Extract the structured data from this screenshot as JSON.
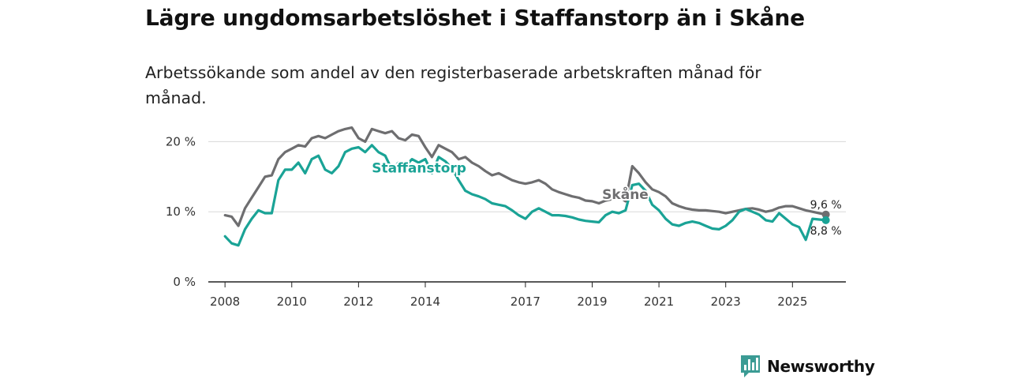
{
  "title": "Lägre ungdomsarbetslöshet i Staffanstorp än i Skåne",
  "subtitle": "Arbetssökande som andel av den registerbaserade arbetskraften månad för månad.",
  "brand": {
    "name": "Newsworthy",
    "icon": "newsworthy-logo-icon",
    "color": "#3b9b94"
  },
  "chart_data": {
    "type": "line",
    "xlim": [
      2007.5,
      2026.6
    ],
    "ylim": [
      0,
      25
    ],
    "y_ticks": [
      0,
      10,
      20
    ],
    "y_tick_labels": [
      "0 %",
      "10 %",
      "20 %"
    ],
    "x_ticks": [
      2008,
      2010,
      2012,
      2014,
      2017,
      2019,
      2021,
      2023,
      2025
    ],
    "x_tick_labels": [
      "2008",
      "2010",
      "2012",
      "2014",
      "2017",
      "2019",
      "2021",
      "2023",
      "2025"
    ],
    "gridlines": true,
    "series": [
      {
        "name": "Skåne",
        "color": "#6e6e70",
        "end_label": "9,6 %",
        "x": [
          2008.0,
          2008.2,
          2008.4,
          2008.6,
          2008.8,
          2009.0,
          2009.2,
          2009.4,
          2009.6,
          2009.8,
          2010.0,
          2010.2,
          2010.4,
          2010.6,
          2010.8,
          2011.0,
          2011.2,
          2011.4,
          2011.6,
          2011.8,
          2012.0,
          2012.2,
          2012.4,
          2012.6,
          2012.8,
          2013.0,
          2013.2,
          2013.4,
          2013.6,
          2013.8,
          2014.0,
          2014.2,
          2014.4,
          2014.6,
          2014.8,
          2015.0,
          2015.2,
          2015.4,
          2015.6,
          2015.8,
          2016.0,
          2016.2,
          2016.4,
          2016.6,
          2016.8,
          2017.0,
          2017.2,
          2017.4,
          2017.6,
          2017.8,
          2018.0,
          2018.2,
          2018.4,
          2018.6,
          2018.8,
          2019.0,
          2019.2,
          2019.4,
          2019.6,
          2019.8,
          2020.0,
          2020.2,
          2020.4,
          2020.6,
          2020.8,
          2021.0,
          2021.2,
          2021.4,
          2021.6,
          2021.8,
          2022.0,
          2022.2,
          2022.4,
          2022.6,
          2022.8,
          2023.0,
          2023.2,
          2023.4,
          2023.6,
          2023.8,
          2024.0,
          2024.2,
          2024.4,
          2024.6,
          2024.8,
          2025.0,
          2025.2,
          2025.4,
          2025.6,
          2025.8,
          2026.0
        ],
        "values": [
          9.5,
          9.3,
          8.0,
          10.5,
          12.0,
          13.5,
          15.0,
          15.2,
          17.5,
          18.5,
          19.0,
          19.5,
          19.3,
          20.5,
          20.8,
          20.5,
          21.0,
          21.5,
          21.8,
          22.0,
          20.5,
          20.0,
          21.8,
          21.5,
          21.2,
          21.5,
          20.5,
          20.2,
          21.0,
          20.8,
          19.2,
          17.8,
          19.5,
          19.0,
          18.5,
          17.5,
          17.8,
          17.0,
          16.5,
          15.8,
          15.2,
          15.5,
          15.0,
          14.5,
          14.2,
          14.0,
          14.2,
          14.5,
          14.0,
          13.2,
          12.8,
          12.5,
          12.2,
          12.0,
          11.6,
          11.5,
          11.2,
          11.6,
          11.8,
          12.2,
          11.5,
          16.5,
          15.5,
          14.2,
          13.2,
          12.8,
          12.2,
          11.2,
          10.8,
          10.5,
          10.3,
          10.2,
          10.2,
          10.1,
          10.0,
          9.8,
          10.0,
          10.2,
          10.4,
          10.5,
          10.3,
          10.0,
          10.2,
          10.6,
          10.8,
          10.8,
          10.5,
          10.2,
          10.0,
          9.8,
          9.6
        ]
      },
      {
        "name": "Staffanstorp",
        "color": "#1aa396",
        "end_label": "8,8 %",
        "x": [
          2008.0,
          2008.2,
          2008.4,
          2008.6,
          2008.8,
          2009.0,
          2009.2,
          2009.4,
          2009.6,
          2009.8,
          2010.0,
          2010.2,
          2010.4,
          2010.6,
          2010.8,
          2011.0,
          2011.2,
          2011.4,
          2011.6,
          2011.8,
          2012.0,
          2012.2,
          2012.4,
          2012.6,
          2012.8,
          2013.0,
          2013.2,
          2013.4,
          2013.6,
          2013.8,
          2014.0,
          2014.2,
          2014.4,
          2014.6,
          2014.8,
          2015.0,
          2015.2,
          2015.4,
          2015.6,
          2015.8,
          2016.0,
          2016.2,
          2016.4,
          2016.6,
          2016.8,
          2017.0,
          2017.2,
          2017.4,
          2017.6,
          2017.8,
          2018.0,
          2018.2,
          2018.4,
          2018.6,
          2018.8,
          2019.0,
          2019.2,
          2019.4,
          2019.6,
          2019.8,
          2020.0,
          2020.2,
          2020.4,
          2020.6,
          2020.8,
          2021.0,
          2021.2,
          2021.4,
          2021.6,
          2021.8,
          2022.0,
          2022.2,
          2022.4,
          2022.6,
          2022.8,
          2023.0,
          2023.2,
          2023.4,
          2023.6,
          2023.8,
          2024.0,
          2024.2,
          2024.4,
          2024.6,
          2024.8,
          2025.0,
          2025.2,
          2025.4,
          2025.6,
          2025.8,
          2026.0
        ],
        "values": [
          6.5,
          5.5,
          5.2,
          7.5,
          9.0,
          10.2,
          9.8,
          9.8,
          14.5,
          16.0,
          16.0,
          17.0,
          15.5,
          17.5,
          18.0,
          16.0,
          15.5,
          16.5,
          18.5,
          19.0,
          19.2,
          18.5,
          19.5,
          18.5,
          18.0,
          16.0,
          17.0,
          16.5,
          17.5,
          17.0,
          17.5,
          15.5,
          17.8,
          17.2,
          16.2,
          14.5,
          13.0,
          12.5,
          12.2,
          11.8,
          11.2,
          11.0,
          10.8,
          10.2,
          9.5,
          9.0,
          10.0,
          10.5,
          10.0,
          9.5,
          9.5,
          9.4,
          9.2,
          8.9,
          8.7,
          8.6,
          8.5,
          9.5,
          10.0,
          9.8,
          10.2,
          13.8,
          14.0,
          13.0,
          11.0,
          10.2,
          9.0,
          8.2,
          8.0,
          8.4,
          8.6,
          8.4,
          8.0,
          7.6,
          7.5,
          8.0,
          8.8,
          10.0,
          10.4,
          10.0,
          9.6,
          8.8,
          8.6,
          9.8,
          9.0,
          8.2,
          7.8,
          6.0,
          9.0,
          8.9,
          8.8
        ]
      }
    ]
  }
}
